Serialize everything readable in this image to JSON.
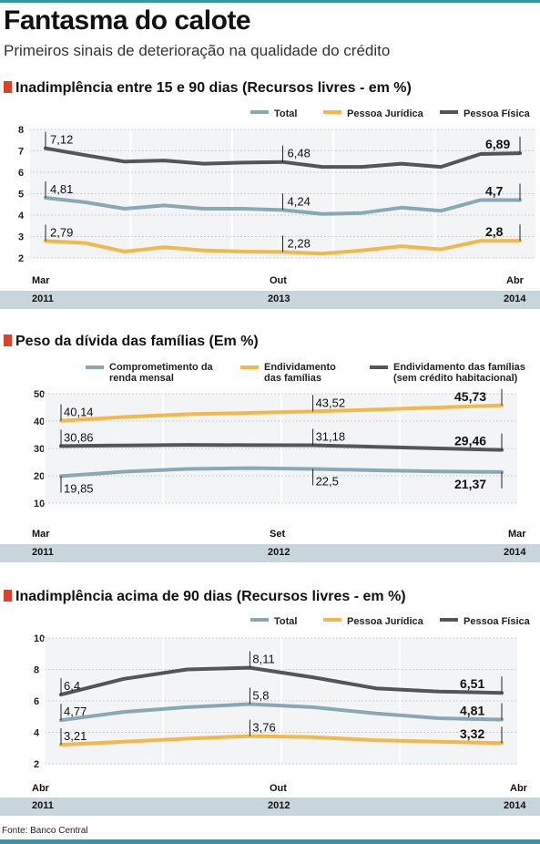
{
  "header": {
    "title": "Fantasma do calote",
    "subtitle": "Primeiros sinais de deterioração na qualidade do crédito"
  },
  "source": "Fonte: Banco Central",
  "colors": {
    "total": "#8aa8b4",
    "juridica": "#f2b84b",
    "fisica": "#555555",
    "band": "#c9d5dc",
    "accent": "#d8432a",
    "teal": "#2f9aa0"
  },
  "chart_data": [
    {
      "type": "line",
      "title": "Inadimplência entre 15 e 90 dias (Recursos livres - em %)",
      "x_labels_top": [
        "Mar",
        "Out",
        "Abr"
      ],
      "x_labels_bottom": [
        "2011",
        "2013",
        "2014"
      ],
      "ylim": [
        2,
        8
      ],
      "yticks": [
        "2",
        "3",
        "4",
        "5",
        "6",
        "7",
        "8"
      ],
      "grid": true,
      "series": [
        {
          "name": "Total",
          "key": "total",
          "values": [
            4.81,
            4.6,
            4.3,
            4.45,
            4.3,
            4.3,
            4.24,
            4.05,
            4.1,
            4.35,
            4.2,
            4.7,
            4.7
          ],
          "labels": [
            "4,81",
            "4,24",
            "4,7"
          ]
        },
        {
          "name": "Pessoa Jurídica",
          "key": "juridica",
          "values": [
            2.79,
            2.7,
            2.3,
            2.5,
            2.35,
            2.3,
            2.28,
            2.2,
            2.35,
            2.55,
            2.4,
            2.8,
            2.8
          ],
          "labels": [
            "2,79",
            "2,28",
            "2,8"
          ]
        },
        {
          "name": "Pessoa Física",
          "key": "fisica",
          "values": [
            7.12,
            6.8,
            6.5,
            6.55,
            6.4,
            6.45,
            6.48,
            6.25,
            6.25,
            6.4,
            6.25,
            6.85,
            6.89
          ],
          "labels": [
            "7,12",
            "6,48",
            "6,89"
          ]
        }
      ]
    },
    {
      "type": "line",
      "title": "Peso da dívida das famílias (Em %)",
      "x_labels_top": [
        "Mar",
        "Set",
        "Mar"
      ],
      "x_labels_bottom": [
        "2011",
        "2012",
        "2014"
      ],
      "ylim": [
        10,
        50
      ],
      "yticks": [
        "10",
        "20",
        "30",
        "40",
        "50"
      ],
      "grid": true,
      "series": [
        {
          "name": "Comprometimento da renda mensal",
          "key": "total",
          "values": [
            19.85,
            21.5,
            22.5,
            22.8,
            22.5,
            22.0,
            21.6,
            21.37
          ],
          "labels": [
            "19,85",
            "22,5",
            "21,37"
          ]
        },
        {
          "name": "Endividamento das famílias",
          "key": "juridica",
          "values": [
            40.14,
            41.5,
            42.5,
            43.0,
            43.52,
            44.2,
            45.0,
            45.73
          ],
          "labels": [
            "40,14",
            "43,52",
            "45,73"
          ]
        },
        {
          "name": "Endividamento das famílias (sem crédito habitacional)",
          "key": "fisica",
          "values": [
            30.86,
            31.1,
            31.3,
            31.2,
            31.18,
            30.6,
            30.0,
            29.46
          ],
          "labels": [
            "30,86",
            "31,18",
            "29,46"
          ]
        }
      ]
    },
    {
      "type": "line",
      "title": "Inadimplência acima de 90 dias (Recursos livres - em %)",
      "x_labels_top": [
        "Abr",
        "Out",
        "Abr"
      ],
      "x_labels_bottom": [
        "2011",
        "2012",
        "2014"
      ],
      "ylim": [
        2,
        10
      ],
      "yticks": [
        "2",
        "4",
        "6",
        "8",
        "10"
      ],
      "grid": true,
      "series": [
        {
          "name": "Total",
          "key": "total",
          "values": [
            4.77,
            5.3,
            5.6,
            5.8,
            5.6,
            5.2,
            4.9,
            4.81
          ],
          "labels": [
            "4,77",
            "5,8",
            "4,81"
          ]
        },
        {
          "name": "Pessoa Jurídica",
          "key": "juridica",
          "values": [
            3.21,
            3.4,
            3.6,
            3.76,
            3.7,
            3.5,
            3.4,
            3.32
          ],
          "labels": [
            "3,21",
            "3,76",
            "3,32"
          ]
        },
        {
          "name": "Pessoa Física",
          "key": "fisica",
          "values": [
            6.4,
            7.4,
            8.0,
            8.11,
            7.5,
            6.8,
            6.6,
            6.51
          ],
          "labels": [
            "6,4",
            "8,11",
            "6,51"
          ]
        }
      ]
    }
  ]
}
